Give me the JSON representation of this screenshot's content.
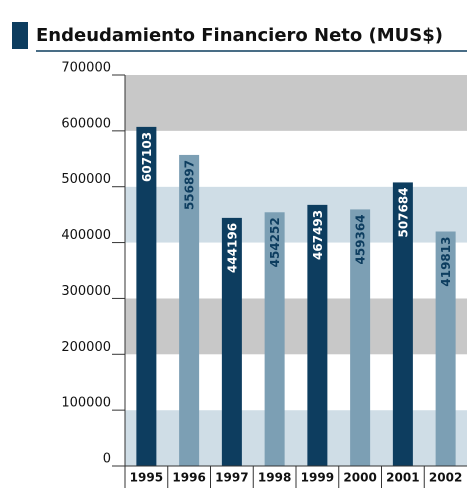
{
  "chart_data": {
    "type": "bar",
    "title": "Endeudamiento Financiero Neto (MUS$)",
    "categories": [
      "1995",
      "1996",
      "1997",
      "1998",
      "1999",
      "2000",
      "2001",
      "2002"
    ],
    "values": [
      607103,
      556897,
      444196,
      454252,
      467493,
      459364,
      507684,
      419813
    ],
    "colors": [
      "#0d3d5f",
      "#7c9fb4",
      "#0d3d5f",
      "#7c9fb4",
      "#0d3d5f",
      "#7c9fb4",
      "#0d3d5f",
      "#7c9fb4"
    ],
    "label_colors": [
      "#ffffff",
      "#0d3d5f",
      "#ffffff",
      "#0d3d5f",
      "#ffffff",
      "#0d3d5f",
      "#ffffff",
      "#0d3d5f"
    ],
    "band_colors": [
      "#cfdde6",
      "#ffffff",
      "#c8c8c8",
      "#ffffff",
      "#cfdde6",
      "#ffffff",
      "#c8c8c8"
    ],
    "ylim": [
      0,
      700000
    ],
    "yticks": [
      0,
      100000,
      200000,
      300000,
      400000,
      500000,
      600000,
      700000
    ]
  }
}
